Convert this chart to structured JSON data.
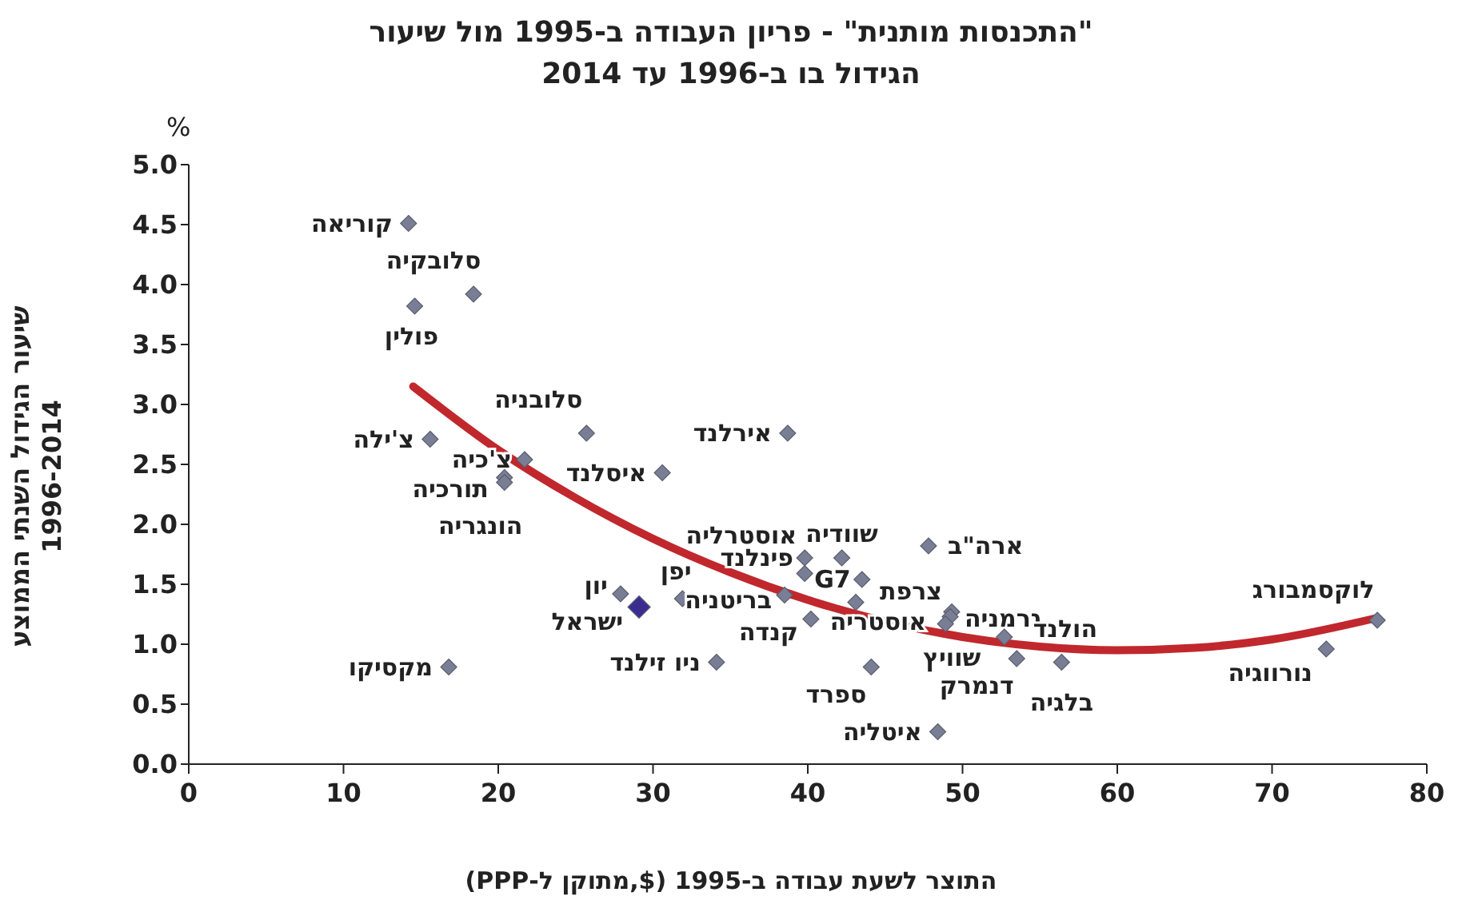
{
  "chart_data": {
    "type": "scatter",
    "title": "\"התכנסות מותנית\" - פריון העבודה ב-1995 מול שיעור\nהגידול בו ב-1996 עד 2014",
    "xlabel": "התוצר לשעת עבודה ב-1995 ($,מתוקן ל-PPP)",
    "ylabel": "שיעור הגידול השנתי הממוצע\n1996-2014",
    "annotations": [
      "%"
    ],
    "xlim": [
      0,
      80
    ],
    "xticks": [
      0,
      10,
      20,
      30,
      40,
      50,
      60,
      70,
      80
    ],
    "ylim": [
      0,
      5
    ],
    "yticks": [
      {
        "value": 0,
        "label": "0.0"
      },
      {
        "value": 0.5,
        "label": "0.5"
      },
      {
        "value": 1,
        "label": "1.0"
      },
      {
        "value": 1.5,
        "label": "1.5"
      },
      {
        "value": 2,
        "label": "2.0"
      },
      {
        "value": 2.5,
        "label": "2.5"
      },
      {
        "value": 3,
        "label": "3.0"
      },
      {
        "value": 3.5,
        "label": "3.5"
      },
      {
        "value": 4,
        "label": "4.0"
      },
      {
        "value": 4.5,
        "label": "4.5"
      },
      {
        "value": 5,
        "label": "5.0"
      }
    ],
    "grid": false,
    "legend": false,
    "marker": "diamond",
    "series": [
      {
        "name": "קוריאה",
        "color": "#7a7e95",
        "x": [
          14.2
        ],
        "values": [
          4.51
        ]
      },
      {
        "name": "סלובקיה",
        "color": "#7a7e95",
        "x": [
          18.4
        ],
        "values": [
          3.92
        ]
      },
      {
        "name": "פולין",
        "color": "#7a7e95",
        "x": [
          14.6
        ],
        "values": [
          3.82
        ]
      },
      {
        "name": "צ'ילה",
        "color": "#7a7e95",
        "x": [
          15.6
        ],
        "values": [
          2.71
        ]
      },
      {
        "name": "צ'כיה",
        "color": "#7a7e95",
        "x": [
          21.7
        ],
        "values": [
          2.54
        ]
      },
      {
        "name": "תורכיה",
        "color": "#7a7e95",
        "x": [
          20.4
        ],
        "values": [
          2.39
        ]
      },
      {
        "name": "הונגריה",
        "color": "#7a7e95",
        "x": [
          20.4
        ],
        "values": [
          2.35
        ]
      },
      {
        "name": "סלובניה",
        "color": "#7a7e95",
        "x": [
          25.7
        ],
        "values": [
          2.76
        ]
      },
      {
        "name": "איסלנד",
        "color": "#7a7e95",
        "x": [
          30.6
        ],
        "values": [
          2.43
        ]
      },
      {
        "name": "אירלנד",
        "color": "#7a7e95",
        "x": [
          38.7
        ],
        "values": [
          2.76
        ]
      },
      {
        "name": "יון",
        "color": "#7a7e95",
        "x": [
          27.9
        ],
        "values": [
          1.42
        ]
      },
      {
        "name": "ישראל",
        "color": "#3a2d8f",
        "x": [
          29.1
        ],
        "values": [
          1.31
        ]
      },
      {
        "name": "יפן",
        "color": "#7a7e95",
        "x": [
          31.9
        ],
        "values": [
          1.38
        ]
      },
      {
        "name": "מקסיקו",
        "color": "#7a7e95",
        "x": [
          16.8
        ],
        "values": [
          0.81
        ]
      },
      {
        "name": "ניו זילנד",
        "color": "#7a7e95",
        "x": [
          34.1
        ],
        "values": [
          0.85
        ]
      },
      {
        "name": "אוסטרליה",
        "color": "#7a7e95",
        "x": [
          39.8
        ],
        "values": [
          1.72
        ]
      },
      {
        "name": "שוודיה",
        "color": "#7a7e95",
        "x": [
          42.2
        ],
        "values": [
          1.72
        ]
      },
      {
        "name": "פינלנד",
        "color": "#7a7e95",
        "x": [
          39.8
        ],
        "values": [
          1.59
        ]
      },
      {
        "name": "G7",
        "color": "#7a7e95",
        "x": [
          43.5
        ],
        "values": [
          1.54
        ]
      },
      {
        "name": "אוסטריה",
        "color": "#7a7e95",
        "x": [
          43.1
        ],
        "values": [
          1.35
        ]
      },
      {
        "name": "בריטניה",
        "color": "#7a7e95",
        "x": [
          38.5
        ],
        "values": [
          1.41
        ]
      },
      {
        "name": "קנדה",
        "color": "#7a7e95",
        "x": [
          40.2
        ],
        "values": [
          1.21
        ]
      },
      {
        "name": "ספרד",
        "color": "#7a7e95",
        "x": [
          44.1
        ],
        "values": [
          0.81
        ]
      },
      {
        "name": "איטליה",
        "color": "#7a7e95",
        "x": [
          48.4
        ],
        "values": [
          0.27
        ]
      },
      {
        "name": "ארה\"ב",
        "color": "#7a7e95",
        "x": [
          47.8
        ],
        "values": [
          1.82
        ]
      },
      {
        "name": "צרפת",
        "color": "#7a7e95",
        "x": [
          49.3
        ],
        "values": [
          1.27
        ]
      },
      {
        "name": "גרמניה",
        "color": "#7a7e95",
        "x": [
          49.2
        ],
        "values": [
          1.23
        ]
      },
      {
        "name": "שוויץ",
        "color": "#7a7e95",
        "x": [
          48.9
        ],
        "values": [
          1.17
        ]
      },
      {
        "name": "הולנד",
        "color": "#7a7e95",
        "x": [
          52.7
        ],
        "values": [
          1.06
        ]
      },
      {
        "name": "דנמרק",
        "color": "#7a7e95",
        "x": [
          53.5
        ],
        "values": [
          0.88
        ]
      },
      {
        "name": "בלגיה",
        "color": "#7a7e95",
        "x": [
          56.4
        ],
        "values": [
          0.85
        ]
      },
      {
        "name": "לוקסמבורג",
        "color": "#7a7e95",
        "x": [
          76.8
        ],
        "values": [
          1.2
        ]
      },
      {
        "name": "נורווגיה",
        "color": "#7a7e95",
        "x": [
          73.5
        ],
        "values": [
          0.96
        ]
      },
      {
        "type": "line",
        "color": "#c0282d",
        "marker": "none",
        "x": [
          14.5,
          20,
          25,
          30,
          35,
          40,
          45,
          50,
          55,
          60,
          65,
          70,
          76.8
        ],
        "values": [
          3.15,
          2.62,
          2.22,
          1.88,
          1.6,
          1.37,
          1.19,
          1.06,
          0.98,
          0.95,
          0.97,
          1.04,
          1.22
        ]
      }
    ]
  }
}
